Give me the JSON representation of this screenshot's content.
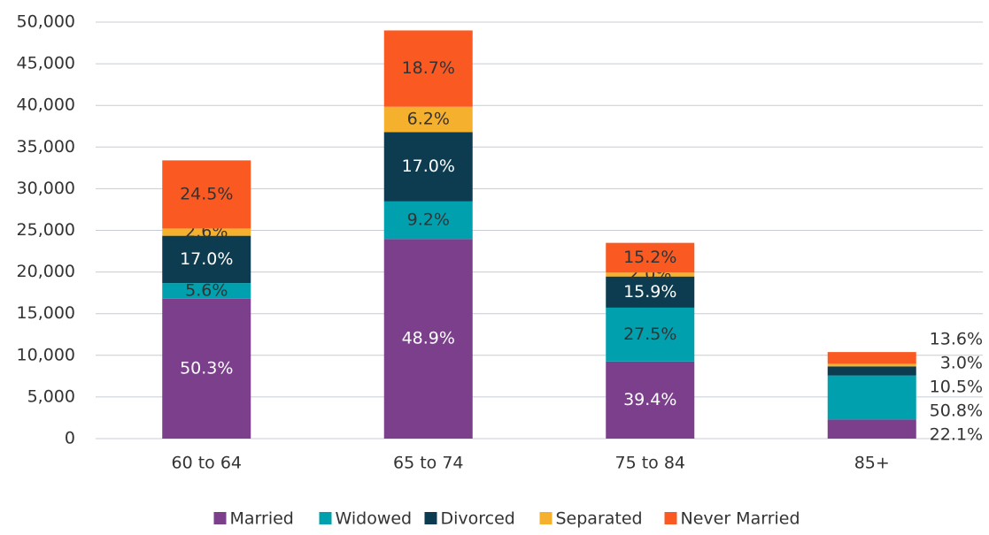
{
  "chart_data": {
    "type": "stacked_bar",
    "categories": [
      "60 to 64",
      "65 to 74",
      "75 to 84",
      "85+"
    ],
    "series": [
      {
        "name": "Married",
        "color": "#7b3f8c",
        "values": [
          16800,
          23960,
          9260,
          2300
        ],
        "value_labels": [
          "50.3%",
          "48.9%",
          "39.4%",
          "22.1%"
        ]
      },
      {
        "name": "Widowed",
        "color": "#00a0ae",
        "values": [
          1870,
          4510,
          6460,
          5280
        ],
        "value_labels": [
          "5.6%",
          "9.2%",
          "27.5%",
          "50.8%"
        ]
      },
      {
        "name": "Divorced",
        "color": "#0d3b4f",
        "values": [
          5680,
          8330,
          3740,
          1090
        ],
        "value_labels": [
          "17.0%",
          "17.0%",
          "15.9%",
          "10.5%"
        ]
      },
      {
        "name": "Separated",
        "color": "#f5b12e",
        "values": [
          870,
          3040,
          470,
          310
        ],
        "value_labels": [
          "2.6%",
          "6.2%",
          "2.0%",
          "3.0%"
        ]
      },
      {
        "name": "Never Married",
        "color": "#fa5a22",
        "values": [
          8180,
          9160,
          3570,
          1410
        ],
        "value_labels": [
          "24.5%",
          "18.7%",
          "15.2%",
          "13.6%"
        ]
      }
    ],
    "ylim": [
      0,
      50000
    ],
    "yticks": [
      0,
      {
        "value": 5000,
        "label": "5,000"
      },
      {
        "value": 10000,
        "label": "10,000"
      },
      {
        "value": 15000,
        "label": "15,000"
      },
      {
        "value": 20000,
        "label": "20,000"
      },
      {
        "value": 25000,
        "label": "25,000"
      },
      {
        "value": 30000,
        "label": "30,000"
      },
      {
        "value": 35000,
        "label": "35,000"
      },
      {
        "value": 40000,
        "label": "40,000"
      },
      {
        "value": 45000,
        "label": "45,000"
      },
      {
        "value": 50000,
        "label": "50,000"
      }
    ],
    "grid": true,
    "legend": "bottom"
  }
}
